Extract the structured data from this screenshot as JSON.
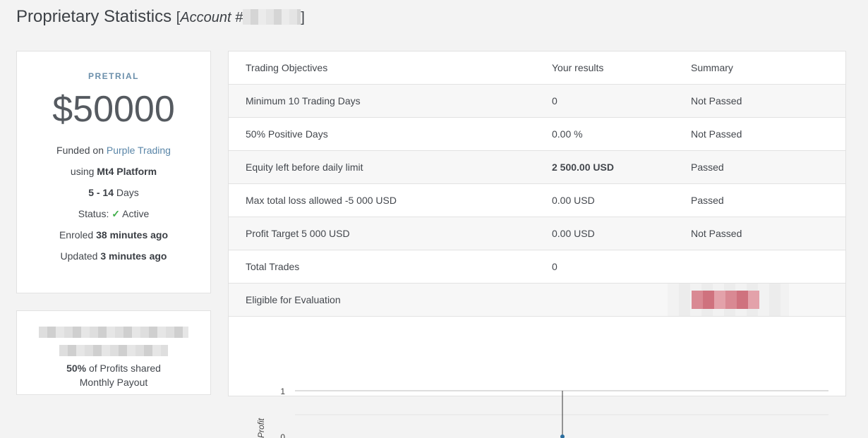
{
  "page": {
    "title": "Proprietary Statistics",
    "account_prefix": "[",
    "account_label": "Account #",
    "account_suffix": "]"
  },
  "summary_card": {
    "badge": "PRETRIAL",
    "amount": "$50000",
    "funded_text": "Funded on",
    "funded_link": "Purple Trading",
    "using_text": "using",
    "platform": "Mt4 Platform",
    "days_range": "5 - 14",
    "days_unit": "Days",
    "status_label": "Status:",
    "status_icon": "check-icon",
    "status_value": "Active",
    "enroled_label": "Enroled",
    "enroled_value": "38 minutes ago",
    "updated_label": "Updated",
    "updated_value": "3 minutes ago"
  },
  "second_card": {
    "profit_share_value": "50%",
    "profit_share_text": "of Profits shared",
    "payout": "Monthly Payout"
  },
  "objectives": {
    "headers": [
      "Trading Objectives",
      "Your results",
      "Summary"
    ],
    "rows": [
      {
        "objective": "Minimum 10 Trading Days",
        "result": "0",
        "summary": "Not Passed"
      },
      {
        "objective": "50% Positive Days",
        "result": "0.00 %",
        "summary": "Not Passed"
      },
      {
        "objective": "Equity left before daily limit",
        "result": "2 500.00 USD",
        "summary": "Passed"
      },
      {
        "objective": "Max total loss allowed -5 000 USD",
        "result": "0.00 USD",
        "summary": "Passed"
      },
      {
        "objective": "Profit Target 5 000 USD",
        "result": "0.00 USD",
        "summary": "Not Passed"
      },
      {
        "objective": "Total Trades",
        "result": "0",
        "summary": ""
      },
      {
        "objective": "Eligible for Evaluation",
        "result": "",
        "summary": ""
      }
    ]
  },
  "chart_data": {
    "type": "line",
    "ylabel": "Profit",
    "yticks": [
      "1",
      "0"
    ],
    "ylim": [
      0,
      1
    ],
    "x": [
      0
    ],
    "series": [
      {
        "values": [
          0
        ]
      }
    ],
    "grid": true
  },
  "colors": {
    "accent": "#5a86a8",
    "badge": "#6b8fab",
    "status_ok": "#3fae49",
    "marker": "#2a6d9e"
  }
}
